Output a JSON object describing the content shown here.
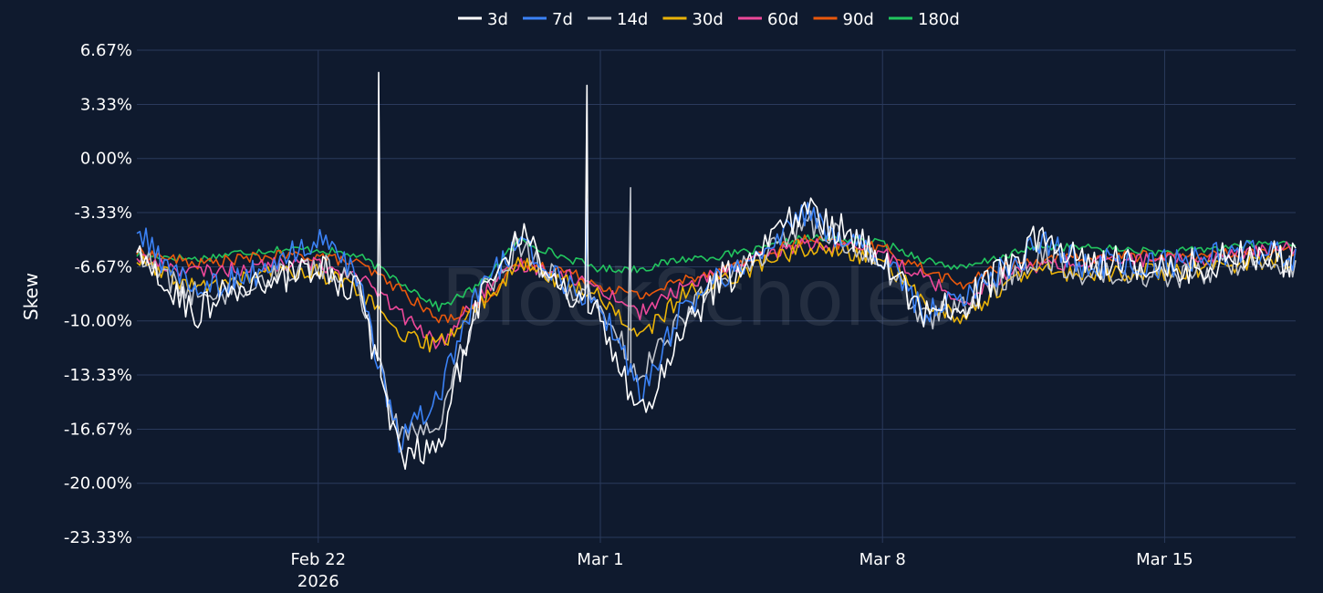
{
  "chart_data": {
    "type": "line",
    "title": "",
    "xlabel": "",
    "ylabel": "Skew",
    "watermark": "BlockScholes",
    "ylim": [
      -23.33,
      6.67
    ],
    "xlim": [
      "2026-02-17T12:00",
      "2026-03-18T06:00"
    ],
    "grid": true,
    "legend_position": "top",
    "x_ticks": [
      {
        "date": "2026-02-22",
        "label": "Feb 22",
        "sublabel": "2026"
      },
      {
        "date": "2026-03-01",
        "label": "Mar 1",
        "sublabel": ""
      },
      {
        "date": "2026-03-08",
        "label": "Mar 8",
        "sublabel": ""
      },
      {
        "date": "2026-03-15",
        "label": "Mar 15",
        "sublabel": ""
      }
    ],
    "y_ticks": [
      {
        "value": 6.67,
        "label": "6.67%"
      },
      {
        "value": 3.33,
        "label": "3.33%"
      },
      {
        "value": 0.0,
        "label": "0.00%"
      },
      {
        "value": -3.33,
        "label": "-3.33%"
      },
      {
        "value": -6.67,
        "label": "-6.67%"
      },
      {
        "value": -10.0,
        "label": "-10.00%"
      },
      {
        "value": -13.33,
        "label": "-13.33%"
      },
      {
        "value": -16.67,
        "label": "-16.67%"
      },
      {
        "value": -20.0,
        "label": "-20.00%"
      },
      {
        "value": -23.33,
        "label": "-23.33%"
      }
    ],
    "x": [
      "2026-02-17",
      "2026-02-18",
      "2026-02-19",
      "2026-02-20",
      "2026-02-21",
      "2026-02-22",
      "2026-02-23",
      "2026-02-24",
      "2026-02-25",
      "2026-02-26",
      "2026-02-27",
      "2026-02-28",
      "2026-03-01",
      "2026-03-02",
      "2026-03-03",
      "2026-03-04",
      "2026-03-05",
      "2026-03-06",
      "2026-03-07",
      "2026-03-08",
      "2026-03-09",
      "2026-03-10",
      "2026-03-11",
      "2026-03-12",
      "2026-03-13",
      "2026-03-14",
      "2026-03-15",
      "2026-03-16",
      "2026-03-17",
      "2026-03-18"
    ],
    "series": [
      {
        "name": "3d",
        "color": "#ffffff",
        "values": [
          -4.0,
          -7.5,
          -9.5,
          -8.0,
          -7.5,
          -6.8,
          -8.0,
          -18.5,
          -17.5,
          -8.5,
          -4.5,
          -8.0,
          -9.5,
          -16.0,
          -10.5,
          -7.5,
          -6.0,
          -3.0,
          -4.5,
          -5.8,
          -9.8,
          -9.0,
          -7.0,
          -4.2,
          -6.5,
          -6.2,
          -6.8,
          -6.5,
          -5.8,
          -6.3
        ]
      },
      {
        "name": "7d",
        "color": "#3b82f6",
        "values": [
          -3.0,
          -6.0,
          -8.0,
          -7.5,
          -6.5,
          -5.0,
          -7.5,
          -17.5,
          -14.5,
          -8.2,
          -5.0,
          -7.5,
          -9.0,
          -14.5,
          -9.5,
          -7.2,
          -6.0,
          -3.4,
          -4.8,
          -6.2,
          -9.5,
          -8.4,
          -6.8,
          -5.2,
          -6.5,
          -6.4,
          -6.5,
          -6.2,
          -5.6,
          -6.0
        ]
      },
      {
        "name": "14d",
        "color": "#c0c4cc",
        "values": [
          -4.0,
          -7.0,
          -8.5,
          -8.0,
          -7.0,
          -6.5,
          -7.8,
          -17.0,
          -16.0,
          -8.5,
          -5.2,
          -7.8,
          -8.8,
          -13.5,
          -9.8,
          -7.4,
          -6.2,
          -3.8,
          -5.0,
          -6.4,
          -9.8,
          -9.2,
          -7.4,
          -5.8,
          -7.2,
          -7.0,
          -7.2,
          -7.0,
          -6.2,
          -6.5
        ]
      },
      {
        "name": "30d",
        "color": "#eab308",
        "values": [
          -5.5,
          -7.0,
          -8.0,
          -7.5,
          -7.0,
          -7.0,
          -8.0,
          -11.0,
          -11.5,
          -9.0,
          -6.5,
          -7.5,
          -8.5,
          -11.0,
          -8.5,
          -7.5,
          -6.5,
          -5.5,
          -5.8,
          -6.2,
          -8.8,
          -9.8,
          -7.8,
          -6.8,
          -7.2,
          -7.0,
          -7.0,
          -6.8,
          -6.4,
          -6.3
        ]
      },
      {
        "name": "60d",
        "color": "#ec4899",
        "values": [
          -5.5,
          -6.5,
          -7.0,
          -6.8,
          -6.5,
          -6.5,
          -7.2,
          -9.5,
          -11.5,
          -8.5,
          -6.5,
          -7.0,
          -8.0,
          -9.5,
          -8.0,
          -7.0,
          -6.2,
          -5.2,
          -5.5,
          -5.8,
          -7.2,
          -8.8,
          -7.2,
          -6.5,
          -6.5,
          -6.2,
          -6.3,
          -6.2,
          -5.8,
          -5.5
        ]
      },
      {
        "name": "90d",
        "color": "#ea580c",
        "values": [
          -5.5,
          -6.0,
          -6.5,
          -6.2,
          -6.0,
          -6.0,
          -6.5,
          -8.0,
          -10.0,
          -9.0,
          -6.5,
          -6.8,
          -7.8,
          -8.5,
          -7.5,
          -6.8,
          -6.0,
          -5.0,
          -5.3,
          -5.5,
          -6.8,
          -7.8,
          -6.6,
          -6.2,
          -6.2,
          -6.0,
          -6.0,
          -6.0,
          -5.8,
          -5.7
        ]
      },
      {
        "name": "180d",
        "color": "#22c55e",
        "values": [
          -5.8,
          -6.0,
          -6.2,
          -5.8,
          -5.6,
          -5.6,
          -6.0,
          -7.5,
          -9.2,
          -7.8,
          -5.0,
          -6.0,
          -6.8,
          -6.8,
          -6.2,
          -6.0,
          -5.6,
          -4.9,
          -5.0,
          -5.2,
          -6.2,
          -6.8,
          -6.0,
          -5.4,
          -5.5,
          -5.6,
          -5.8,
          -5.6,
          -5.3,
          -5.2
        ]
      }
    ],
    "spikes": [
      {
        "series": "3d",
        "x": "2026-02-23T12:00",
        "value": 5.3
      },
      {
        "series": "3d",
        "x": "2026-02-28T16:00",
        "value": 4.5
      },
      {
        "series": "7d",
        "x": "2026-02-28T16:00",
        "value": -2.5
      },
      {
        "series": "14d",
        "x": "2026-03-01T18:00",
        "value": -1.8
      }
    ]
  }
}
